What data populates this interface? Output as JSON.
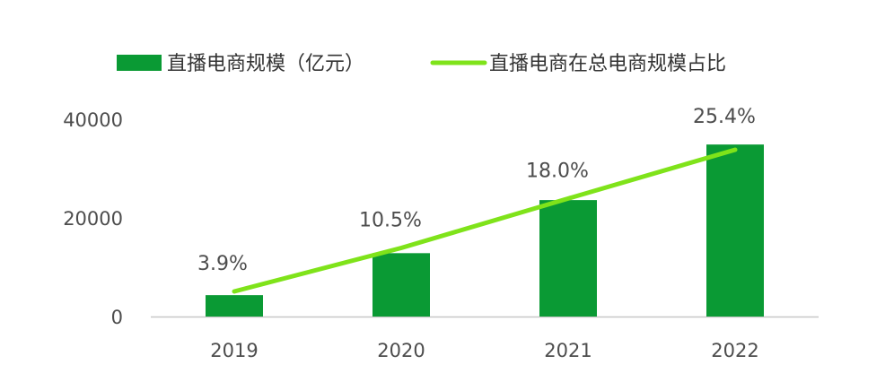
{
  "chart_data": {
    "type": "bar",
    "categories": [
      "2019",
      "2020",
      "2021",
      "2022"
    ],
    "series": [
      {
        "name": "直播电商规模（亿元）",
        "type": "bar",
        "values": [
          4338,
          12850,
          23615,
          34879
        ]
      },
      {
        "name": "直播电商在总电商规模占比",
        "type": "line",
        "values": [
          3.9,
          10.5,
          18.0,
          25.4
        ]
      }
    ],
    "data_labels": [
      "3.9%",
      "10.5%",
      "18.0%",
      "25.4%"
    ],
    "y_ticks": [
      "0",
      "20000",
      "40000"
    ],
    "ylim": [
      0,
      40000
    ],
    "legend_position": "top",
    "grid": false,
    "colors": {
      "bar": "#0a9a34",
      "line": "#7fe31a",
      "axis": "#c8c8c8",
      "text": "#4d4d4d"
    }
  }
}
